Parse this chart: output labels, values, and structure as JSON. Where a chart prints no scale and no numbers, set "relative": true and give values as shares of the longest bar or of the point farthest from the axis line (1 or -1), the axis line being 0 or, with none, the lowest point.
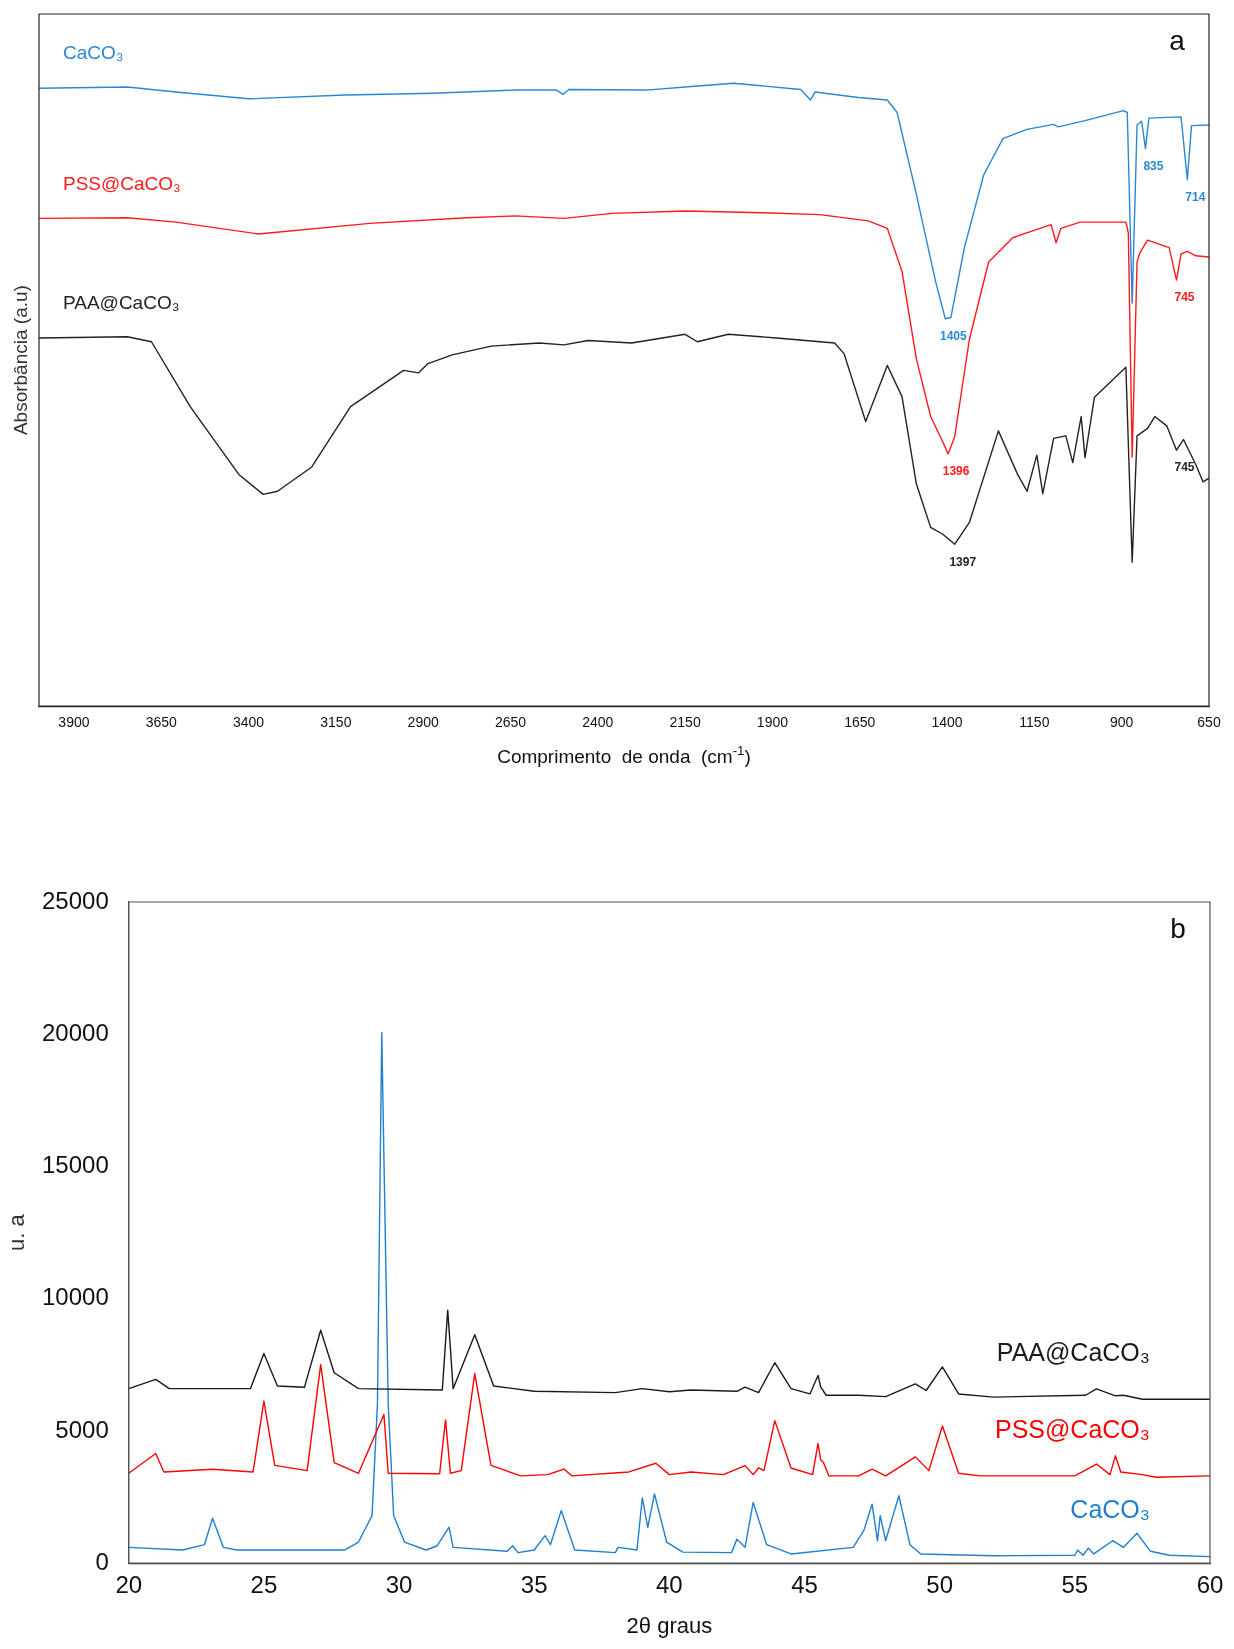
{
  "chart_data": [
    {
      "type": "line",
      "xlabel": "Comprimento  de onda  (cm$^{-1}$)",
      "ylabel": "Absorbância (a.u)",
      "relative": true,
      "xlim": [
        4000,
        650
      ],
      "xticks": [
        3900,
        3650,
        3400,
        3150,
        2900,
        2650,
        2400,
        2150,
        1900,
        1650,
        1400,
        1150,
        900,
        650
      ],
      "series": [
        {
          "name": "CaCO₃",
          "color": "#2a87d3",
          "x": [
            4000,
            3747,
            3608,
            3400,
            3122,
            2872,
            2636,
            2518,
            2500,
            2483,
            2261,
            2150,
            2012,
            1819,
            1791,
            1778,
            1654,
            1571,
            1543,
            1488,
            1433,
            1405,
            1389,
            1350,
            1295,
            1240,
            1171,
            1095,
            1081,
            1005,
            895,
            884,
            870,
            856,
            843,
            832,
            822,
            730,
            712,
            700,
            650
          ],
          "values": [
            0.992,
            0.994,
            0.986,
            0.975,
            0.981,
            0.984,
            0.989,
            0.989,
            0.982,
            0.99,
            0.989,
            0.994,
            1,
            0.99,
            0.973,
            0.986,
            0.977,
            0.973,
            0.953,
            0.822,
            0.682,
            0.622,
            0.624,
            0.737,
            0.853,
            0.911,
            0.926,
            0.934,
            0.93,
            0.94,
            0.956,
            0.953,
            0.647,
            0.933,
            0.939,
            0.895,
            0.944,
            0.946,
            0.845,
            0.932,
            0.933
          ]
        },
        {
          "name": "PSS@CaCO₃",
          "color": "#ff1a1a",
          "x": [
            4000,
            3747,
            3608,
            3372,
            3053,
            2775,
            2636,
            2497,
            2358,
            2150,
            1929,
            1764,
            1626,
            1571,
            1529,
            1488,
            1447,
            1416,
            1397,
            1378,
            1336,
            1281,
            1212,
            1102,
            1088,
            1074,
            1019,
            888,
            881,
            870,
            856,
            847,
            826,
            764,
            743,
            730,
            712,
            688,
            650
          ],
          "values": [
            0.783,
            0.784,
            0.777,
            0.758,
            0.775,
            0.784,
            0.787,
            0.783,
            0.791,
            0.795,
            0.792,
            0.789,
            0.779,
            0.767,
            0.698,
            0.558,
            0.465,
            0.429,
            0.405,
            0.433,
            0.589,
            0.713,
            0.752,
            0.773,
            0.744,
            0.767,
            0.777,
            0.777,
            0.76,
            0.4,
            0.713,
            0.729,
            0.748,
            0.736,
            0.684,
            0.726,
            0.73,
            0.723,
            0.721
          ]
        },
        {
          "name": "PAA@CaCO₃",
          "color": "#222222",
          "x": [
            4000,
            3747,
            3678,
            3567,
            3428,
            3358,
            3317,
            3219,
            3108,
            2956,
            2914,
            2886,
            2817,
            2705,
            2567,
            2497,
            2428,
            2303,
            2150,
            2115,
            2026,
            1888,
            1722,
            1695,
            1633,
            1571,
            1529,
            1488,
            1447,
            1412,
            1378,
            1336,
            1253,
            1198,
            1171,
            1143,
            1126,
            1095,
            1060,
            1040,
            1016,
            1005,
            978,
            888,
            870,
            856,
            826,
            805,
            771,
            743,
            723,
            688,
            667,
            650
          ],
          "values": [
            0.591,
            0.593,
            0.585,
            0.481,
            0.372,
            0.34,
            0.345,
            0.384,
            0.481,
            0.539,
            0.535,
            0.55,
            0.564,
            0.578,
            0.583,
            0.58,
            0.587,
            0.583,
            0.597,
            0.585,
            0.597,
            0.591,
            0.583,
            0.566,
            0.457,
            0.547,
            0.497,
            0.357,
            0.287,
            0.276,
            0.26,
            0.295,
            0.442,
            0.372,
            0.345,
            0.403,
            0.341,
            0.43,
            0.434,
            0.391,
            0.465,
            0.399,
            0.496,
            0.544,
            0.231,
            0.434,
            0.446,
            0.465,
            0.45,
            0.411,
            0.428,
            0.388,
            0.36,
            0.366
          ]
        }
      ],
      "annotations": [
        "a",
        {
          "text": "1405",
          "x": 1405,
          "y": 0.622
        },
        {
          "text": "835",
          "x": 832,
          "y": 0.895
        },
        {
          "text": "714",
          "x": 712,
          "y": 0.845
        },
        {
          "text": "1396",
          "x": 1397,
          "y": 0.405
        },
        {
          "text": "745",
          "x": 743,
          "y": 0.684
        },
        {
          "text": "1397",
          "x": 1378,
          "y": 0.26
        },
        {
          "text": "745",
          "x": 743,
          "y": 0.411
        }
      ]
    },
    {
      "type": "line",
      "xlabel": "2θ graus",
      "ylabel": "u. a",
      "xlim": [
        20,
        60
      ],
      "xticks": [
        20,
        25,
        30,
        35,
        40,
        45,
        50,
        55,
        60
      ],
      "ylim": [
        0,
        25000
      ],
      "yticks": [
        0,
        5000,
        10000,
        15000,
        20000,
        25000
      ],
      "series": [
        {
          "name": "PAA@CaCO₃",
          "color": "#1a1a1a",
          "x": [
            20,
            21,
            21.5,
            24.5,
            25,
            25.5,
            26.5,
            27.1,
            27.6,
            28.5,
            31.6,
            31.8,
            31.9,
            32,
            32.8,
            33.5,
            35,
            38,
            39,
            40,
            40.8,
            42.5,
            42.8,
            43.3,
            43.9,
            44.5,
            45.2,
            45.5,
            45.6,
            45.8,
            47,
            48,
            49.1,
            49.5,
            50.1,
            50.7,
            52,
            55.4,
            55.8,
            56.5,
            56.8,
            57.5,
            60
          ],
          "values": [
            6600,
            6950,
            6600,
            6600,
            7930,
            6700,
            6650,
            8810,
            7200,
            6600,
            6550,
            9570,
            8110,
            6600,
            8640,
            6700,
            6500,
            6450,
            6600,
            6480,
            6550,
            6500,
            6660,
            6450,
            7580,
            6600,
            6400,
            7100,
            6660,
            6350,
            6350,
            6300,
            6780,
            6530,
            7420,
            6400,
            6280,
            6350,
            6590,
            6330,
            6350,
            6200,
            6200
          ]
        },
        {
          "name": "PSS@CaCO₃",
          "color": "#ff0000",
          "x": [
            20,
            21,
            21.3,
            23.1,
            24.6,
            25,
            25.4,
            26.6,
            27.1,
            27.6,
            28.5,
            29.44,
            29.6,
            31.5,
            31.72,
            31.9,
            32.3,
            32.8,
            33.4,
            34.5,
            35.5,
            36.1,
            36.4,
            38.5,
            39.5,
            40,
            40.8,
            42,
            42.8,
            43.1,
            43.3,
            43.5,
            43.9,
            44.5,
            45.3,
            45.5,
            45.6,
            45.7,
            45.9,
            47,
            47.5,
            48,
            48.5,
            49.1,
            49.6,
            50.1,
            50.7,
            51.5,
            55,
            55.8,
            56.3,
            56.5,
            56.7,
            57.5,
            58,
            60
          ],
          "values": [
            3400,
            4150,
            3450,
            3550,
            3450,
            6130,
            3700,
            3500,
            7510,
            3800,
            3400,
            5620,
            3400,
            3380,
            5420,
            3400,
            3500,
            7170,
            3700,
            3300,
            3350,
            3560,
            3300,
            3450,
            3780,
            3350,
            3450,
            3350,
            3690,
            3350,
            3600,
            3500,
            5390,
            3600,
            3350,
            4530,
            3900,
            3810,
            3300,
            3300,
            3560,
            3300,
            3620,
            4020,
            3500,
            5190,
            3400,
            3300,
            3300,
            3750,
            3350,
            4060,
            3450,
            3350,
            3250,
            3300
          ]
        },
        {
          "name": "CaCO₃",
          "color": "#1f7fd0",
          "x": [
            20,
            22,
            22.8,
            23.1,
            23.5,
            24,
            28,
            28.5,
            29,
            29.2,
            29.36,
            29.6,
            29.8,
            30.2,
            31,
            31.4,
            31.85,
            32,
            34,
            34.2,
            34.4,
            35,
            35.4,
            35.6,
            36,
            36.5,
            38,
            38.1,
            38.8,
            39,
            39.2,
            39.45,
            39.9,
            40.5,
            42.3,
            42.5,
            42.8,
            43.1,
            43.6,
            44.5,
            46.8,
            47.2,
            47.5,
            47.7,
            47.8,
            48,
            48.49,
            48.9,
            49.3,
            52,
            55,
            55.1,
            55.3,
            55.5,
            55.7,
            56.4,
            56.8,
            57.3,
            57.8,
            58.5,
            60
          ],
          "values": [
            600,
            500,
            700,
            1700,
            600,
            500,
            500,
            800,
            1800,
            6000,
            20060,
            6000,
            1800,
            800,
            500,
            650,
            1360,
            600,
            450,
            660,
            400,
            500,
            1040,
            700,
            1990,
            500,
            400,
            600,
            500,
            2470,
            1350,
            2620,
            800,
            420,
            400,
            910,
            600,
            2300,
            700,
            350,
            600,
            1250,
            2230,
            840,
            1800,
            850,
            2550,
            700,
            350,
            280,
            300,
            500,
            300,
            570,
            350,
            850,
            600,
            1130,
            450,
            300,
            250
          ]
        }
      ],
      "annotations": [
        "b"
      ]
    }
  ]
}
